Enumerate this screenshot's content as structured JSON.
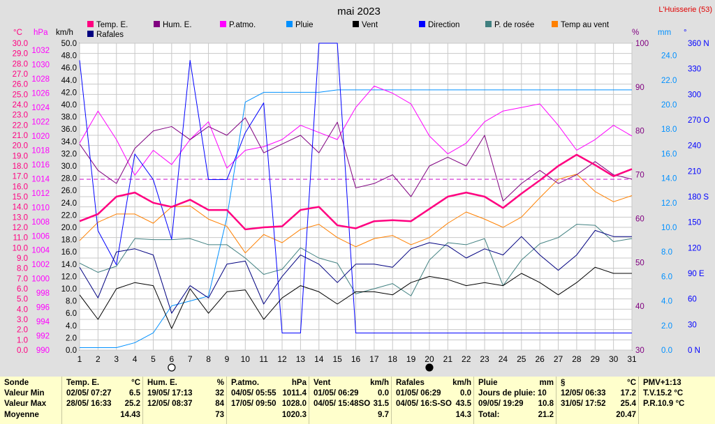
{
  "header": {
    "title": "mai 2023",
    "station": "L'Huisserie (53)"
  },
  "chart_data": {
    "type": "line",
    "title": "mai 2023",
    "x": [
      1,
      2,
      3,
      4,
      5,
      6,
      7,
      8,
      9,
      10,
      11,
      12,
      13,
      14,
      15,
      16,
      17,
      18,
      19,
      20,
      21,
      22,
      23,
      24,
      25,
      26,
      27,
      28,
      29,
      30,
      31
    ],
    "axes": {
      "temp_c": {
        "unit": "°C",
        "range": [
          0,
          30
        ],
        "ticks": [
          "0.0",
          "1.0",
          "2.0",
          "3.0",
          "4.0",
          "5.0",
          "6.0",
          "7.0",
          "8.0",
          "9.0",
          "10.0",
          "11.0",
          "12.0",
          "13.0",
          "14.0",
          "15.0",
          "16.0",
          "17.0",
          "18.0",
          "19.0",
          "20.0",
          "21.0",
          "22.0",
          "23.0",
          "24.0",
          "25.0",
          "26.0",
          "27.0",
          "28.0",
          "29.0",
          "30.0"
        ]
      },
      "pressure_hpa": {
        "unit": "hPa",
        "range": [
          990,
          1033
        ],
        "ticks": [
          "990",
          "992",
          "994",
          "996",
          "998",
          "1000",
          "1002",
          "1004",
          "1006",
          "1008",
          "1010",
          "1012",
          "1014",
          "1016",
          "1018",
          "1020",
          "1022",
          "1024",
          "1026",
          "1028",
          "1030",
          "1032"
        ]
      },
      "wind_kmh": {
        "unit": "km/h",
        "range": [
          0,
          50
        ],
        "ticks": [
          "0.0",
          "2.0",
          "4.0",
          "6.0",
          "8.0",
          "10.0",
          "12.0",
          "14.0",
          "16.0",
          "18.0",
          "20.0",
          "22.0",
          "24.0",
          "26.0",
          "28.0",
          "30.0",
          "32.0",
          "34.0",
          "36.0",
          "38.0",
          "40.0",
          "42.0",
          "44.0",
          "46.0",
          "48.0",
          "50.0"
        ]
      },
      "humidity_pct": {
        "unit": "%",
        "range": [
          30,
          100
        ],
        "ticks": [
          "30",
          "40",
          "50",
          "60",
          "70",
          "80",
          "90",
          "100"
        ]
      },
      "rain_mm": {
        "unit": "mm",
        "range": [
          0,
          25
        ],
        "ticks": [
          "0.0",
          "2.0",
          "4.0",
          "6.0",
          "8.0",
          "10.0",
          "12.0",
          "14.0",
          "16.0",
          "18.0",
          "20.0",
          "22.0",
          "24.0"
        ]
      },
      "direction_deg": {
        "unit": "°",
        "range": [
          0,
          360
        ],
        "ticks": [
          "0 N",
          "30",
          "60",
          "90 E",
          "120",
          "150",
          "180 S",
          "210",
          "240",
          "270 O",
          "300",
          "330",
          "360 N"
        ]
      }
    },
    "x_ticks": [
      "1",
      "2",
      "3",
      "4",
      "5",
      "6",
      "7",
      "8",
      "9",
      "10",
      "11",
      "12",
      "13",
      "14",
      "15",
      "16",
      "17",
      "18",
      "19",
      "20",
      "21",
      "22",
      "23",
      "24",
      "25",
      "26",
      "27",
      "28",
      "29",
      "30",
      "31"
    ],
    "moon_markers": [
      {
        "day": 6,
        "phase": "new"
      },
      {
        "day": 20,
        "phase": "full"
      }
    ],
    "reference_line": {
      "axis": "temp_c",
      "value": 16.7,
      "color": "#d020d0",
      "style": "dashed"
    },
    "series": [
      {
        "name": "Temp. E.",
        "axis": "temp_c",
        "color": "#ff0080",
        "width": 2.5,
        "values": [
          12.6,
          13.3,
          15.0,
          15.4,
          14.4,
          14.0,
          14.7,
          13.7,
          13.7,
          11.8,
          12.0,
          12.1,
          13.7,
          14.0,
          12.2,
          11.9,
          12.6,
          12.7,
          12.6,
          13.8,
          15.0,
          15.4,
          15.0,
          13.9,
          15.3,
          16.6,
          18.0,
          19.1,
          18.1,
          17.0,
          17.7
        ]
      },
      {
        "name": "Hum. E.",
        "axis": "humidity_pct",
        "color": "#800080",
        "width": 1,
        "values": [
          77,
          71,
          68,
          76,
          80,
          81,
          78,
          81,
          79,
          83,
          75,
          77,
          79,
          75,
          82,
          67,
          68,
          70,
          65,
          72,
          74,
          72,
          79,
          64,
          68,
          71,
          68,
          70,
          73,
          70,
          69
        ]
      },
      {
        "name": "P.atmo.",
        "axis": "pressure_hpa",
        "color": "#ff00ff",
        "width": 1,
        "values": [
          1019.0,
          1023.5,
          1019.5,
          1014.5,
          1018.0,
          1016.0,
          1019.5,
          1022.0,
          1015.5,
          1018.0,
          1018.5,
          1019.5,
          1021.5,
          1020.5,
          1019.5,
          1024.0,
          1027.0,
          1026.0,
          1024.5,
          1020.0,
          1017.5,
          1019.0,
          1022.0,
          1023.5,
          1024.0,
          1024.5,
          1021.5,
          1018.0,
          1019.5,
          1021.5,
          1020.0
        ]
      },
      {
        "name": "Pluie",
        "axis": "rain_mm",
        "color": "#0090ff",
        "width": 1,
        "values": [
          0.2,
          0.2,
          0.2,
          0.6,
          1.4,
          3.6,
          4.0,
          4.4,
          10.8,
          20.2,
          21.0,
          21.0,
          21.0,
          21.0,
          21.2,
          21.2,
          21.2,
          21.2,
          21.2,
          21.2,
          21.2,
          21.2,
          21.2,
          21.2,
          21.2,
          21.2,
          21.2,
          21.2,
          21.2,
          21.2,
          21.2
        ]
      },
      {
        "name": "Vent",
        "axis": "wind_kmh",
        "color": "#000000",
        "width": 1,
        "values": [
          9.0,
          5.0,
          10.0,
          11.0,
          10.5,
          3.5,
          10.0,
          6.0,
          9.5,
          9.8,
          5.0,
          8.5,
          10.5,
          9.5,
          7.5,
          9.5,
          9.5,
          9.0,
          11.0,
          12.0,
          11.5,
          10.5,
          11.0,
          10.5,
          12.5,
          11.0,
          9.0,
          11.0,
          13.5,
          12.5,
          12.5
        ]
      },
      {
        "name": "Direction",
        "axis": "direction_deg",
        "color": "#0000ff",
        "width": 1,
        "values": [
          340,
          140,
          100,
          230,
          200,
          130,
          340,
          200,
          200,
          255,
          290,
          20,
          20,
          360,
          360,
          20,
          20,
          20,
          20,
          20,
          20,
          20,
          20,
          20,
          20,
          20,
          20,
          20,
          20,
          20,
          20
        ]
      },
      {
        "name": "P. de rosée",
        "axis": "temp_c",
        "color": "#408080",
        "width": 1,
        "values": [
          8.5,
          7.6,
          8.2,
          10.9,
          10.8,
          10.8,
          10.9,
          10.3,
          10.3,
          9.0,
          7.4,
          7.9,
          10.0,
          9.0,
          8.5,
          5.5,
          6.0,
          6.5,
          5.3,
          8.8,
          10.5,
          10.3,
          10.9,
          6.3,
          8.8,
          10.4,
          11.0,
          12.3,
          12.2,
          10.6,
          10.9
        ]
      },
      {
        "name": "Temp au vent",
        "axis": "temp_c",
        "color": "#ff8000",
        "width": 1,
        "values": [
          10.7,
          12.5,
          13.3,
          13.3,
          12.4,
          14.0,
          14.1,
          12.8,
          12.1,
          9.5,
          11.3,
          10.5,
          11.8,
          12.3,
          11.0,
          10.1,
          10.9,
          11.2,
          10.3,
          11.0,
          12.4,
          13.5,
          12.8,
          12.0,
          13.0,
          14.9,
          16.7,
          17.2,
          15.5,
          14.5,
          15.1
        ]
      },
      {
        "name": "Rafales",
        "axis": "wind_kmh",
        "color": "#000080",
        "width": 1,
        "values": [
          13.5,
          8.5,
          16.0,
          16.5,
          15.5,
          6.0,
          10.5,
          8.5,
          14.0,
          14.5,
          7.5,
          12.0,
          15.5,
          14.0,
          11.0,
          14.0,
          14.0,
          13.5,
          16.5,
          17.5,
          17.0,
          15.0,
          16.5,
          15.5,
          18.5,
          15.5,
          13.0,
          15.5,
          19.5,
          18.5,
          18.5
        ]
      }
    ]
  },
  "summary": {
    "headers": {
      "sonde": "Sonde",
      "temp": {
        "name": "Temp. E.",
        "unit": "°C"
      },
      "hum": {
        "name": "Hum. E.",
        "unit": "%"
      },
      "patmo": {
        "name": "P.atmo.",
        "unit": "hPa"
      },
      "vent": {
        "name": "Vent",
        "unit": "km/h"
      },
      "rafales": {
        "name": "Rafales",
        "unit": "km/h"
      },
      "pluie": {
        "name": "Pluie",
        "unit": "mm"
      },
      "dew": {
        "name": "§",
        "unit": "°C"
      },
      "pmv": "PMV+1:13"
    },
    "row_labels": [
      "Valeur Min",
      "Valeur Max",
      "Moyenne"
    ],
    "temp": {
      "min_date": "02/05/ 07:27",
      "min": "6.5",
      "max_date": "28/05/ 16:33",
      "max": "25.2",
      "avg": "14.43"
    },
    "hum": {
      "min_date": "19/05/ 17:13",
      "min": "32",
      "max_date": "12/05/ 08:37",
      "max": "84",
      "avg": "73"
    },
    "patmo": {
      "min_date": "04/05/ 05:55",
      "min": "1011.4",
      "max_date": "17/05/ 09:50",
      "max": "1028.0",
      "avg": "1020.3"
    },
    "vent": {
      "min_date": "01/05/ 06:29",
      "min": "0.0",
      "max_date": "04/05/ 15:48SO",
      "max": "31.5",
      "avg": "9.7"
    },
    "rafales": {
      "min_date": "01/05/ 06:29",
      "min": "0.0",
      "max_date": "04/05/ 16:S-SO",
      "max": "43.5",
      "avg": "14.3"
    },
    "pluie": {
      "row1_label": "Jours de pluie: 10",
      "row2_label": "09/05/ 19:29",
      "row2_val": "10.8",
      "row3_label": "Total:",
      "row3_val": "21.2"
    },
    "dew": {
      "min_date": "12/05/ 06:33",
      "min": "17.2",
      "max_date": "31/05/ 17:52",
      "max": "25.4",
      "avg": "20.47"
    },
    "pmv": {
      "tv": "T.V.15.2 °C",
      "pr": "P.R.10.9 °C"
    }
  }
}
